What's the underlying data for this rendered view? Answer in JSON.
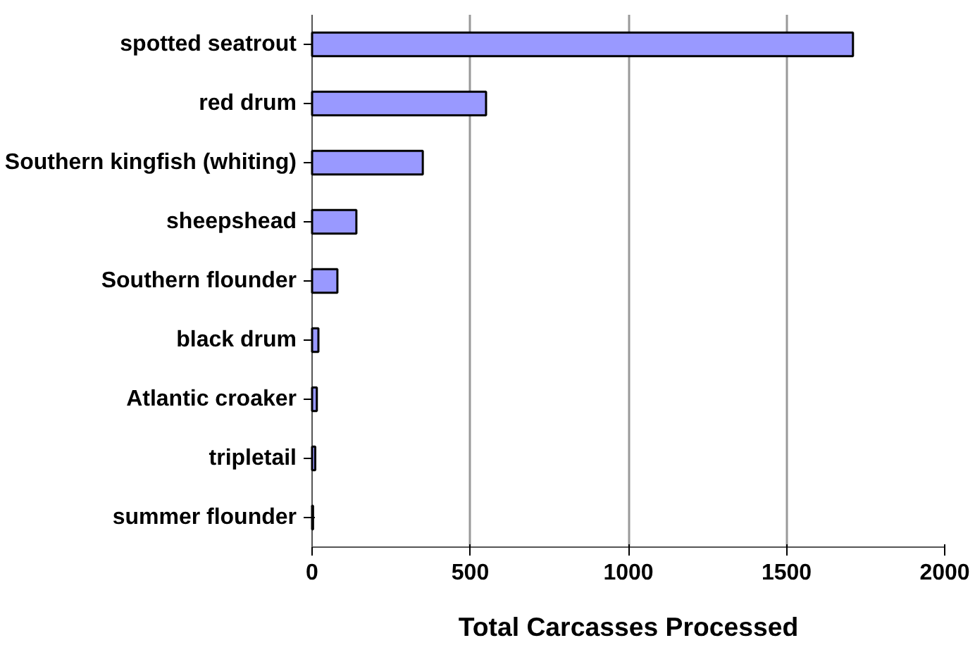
{
  "chart_data": {
    "type": "bar",
    "orientation": "horizontal",
    "xlabel": "Total Carcasses Processed",
    "categories": [
      "spotted seatrout",
      "red drum",
      "Southern kingfish (whiting)",
      "sheepshead",
      "Southern flounder",
      "black drum",
      "Atlantic croaker",
      "tripletail",
      "summer flounder"
    ],
    "values": [
      1710,
      550,
      350,
      140,
      80,
      20,
      15,
      10,
      3
    ],
    "color": "#9999ff",
    "xlim": [
      0,
      2000
    ],
    "xticks": [
      0,
      500,
      1000,
      1500,
      2000
    ],
    "grid": "x"
  }
}
